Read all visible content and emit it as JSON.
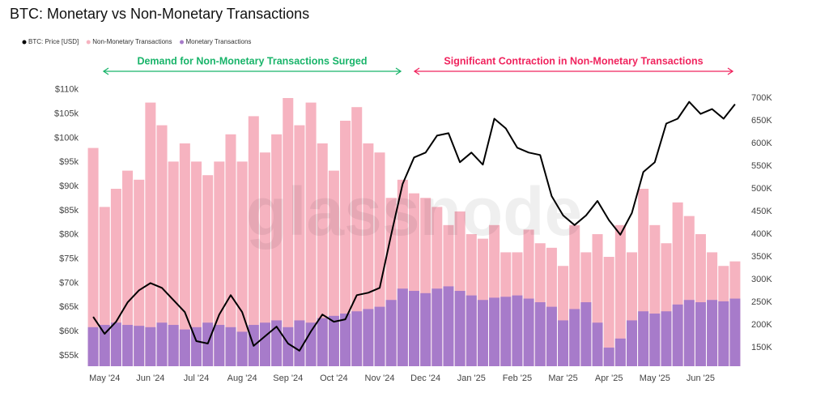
{
  "chart_data": {
    "type": "combo",
    "title": "BTC: Monetary vs Non-Monetary Transactions",
    "watermark": "glassnode",
    "categories": [
      null,
      "May '24",
      null,
      null,
      null,
      "Jun '24",
      null,
      null,
      null,
      "Jul '24",
      null,
      null,
      null,
      "Aug '24",
      null,
      null,
      null,
      "Sep '24",
      null,
      null,
      null,
      "Oct '24",
      null,
      null,
      null,
      "Nov '24",
      null,
      null,
      null,
      "Dec '24",
      null,
      null,
      null,
      "Jan '25",
      null,
      null,
      null,
      "Feb '25",
      null,
      null,
      null,
      "Mar '25",
      null,
      null,
      null,
      "Apr '25",
      null,
      null,
      null,
      "May '25",
      null,
      null,
      null,
      "Jun '25",
      null,
      null,
      null
    ],
    "series": [
      {
        "name": "BTC: Price [USD]",
        "type": "line",
        "axis": "y",
        "color": "#000000",
        "values": [
          63000,
          59500,
          62000,
          66000,
          68500,
          70000,
          69000,
          66500,
          64000,
          58000,
          57500,
          63500,
          67500,
          64000,
          57000,
          59000,
          61000,
          57500,
          56000,
          60000,
          63500,
          62000,
          62500,
          67500,
          68000,
          69000,
          80000,
          90500,
          96000,
          97000,
          100500,
          101000,
          95000,
          97000,
          94500,
          104000,
          102000,
          98000,
          97000,
          96500,
          88000,
          84000,
          82000,
          84000,
          87000,
          83000,
          80000,
          84500,
          93000,
          95000,
          103000,
          104000,
          107500,
          105000,
          106000,
          104000,
          107000
        ]
      },
      {
        "name": "Non-Monetary Transactions",
        "type": "bar",
        "axis": "y2",
        "color": "#f6b3c0",
        "values": [
          590000,
          460000,
          500000,
          540000,
          520000,
          690000,
          640000,
          560000,
          600000,
          560000,
          530000,
          560000,
          620000,
          560000,
          660000,
          580000,
          620000,
          700000,
          640000,
          690000,
          600000,
          540000,
          650000,
          680000,
          600000,
          580000,
          480000,
          520000,
          490000,
          480000,
          460000,
          420000,
          450000,
          400000,
          390000,
          420000,
          360000,
          360000,
          410000,
          380000,
          370000,
          330000,
          420000,
          360000,
          400000,
          350000,
          420000,
          360000,
          500000,
          420000,
          380000,
          470000,
          440000,
          400000,
          360000,
          330000,
          340000
        ]
      },
      {
        "name": "Monetary Transactions",
        "type": "bar",
        "axis": "y2",
        "color": "#a77bca",
        "values": [
          195000,
          200000,
          205000,
          200000,
          198000,
          195000,
          205000,
          200000,
          190000,
          195000,
          205000,
          200000,
          195000,
          185000,
          200000,
          205000,
          210000,
          195000,
          210000,
          205000,
          215000,
          220000,
          225000,
          230000,
          235000,
          240000,
          255000,
          280000,
          275000,
          270000,
          280000,
          285000,
          275000,
          265000,
          255000,
          260000,
          262000,
          265000,
          258000,
          250000,
          240000,
          210000,
          235000,
          250000,
          205000,
          150000,
          170000,
          210000,
          230000,
          225000,
          230000,
          245000,
          255000,
          250000,
          255000,
          252000,
          258000
        ]
      }
    ],
    "ylim": [
      52800,
      111800
    ],
    "yticks": [
      {
        "value": 55000,
        "label": "$55k"
      },
      {
        "value": 60000,
        "label": "$60k"
      },
      {
        "value": 65000,
        "label": "$65k"
      },
      {
        "value": 70000,
        "label": "$70k"
      },
      {
        "value": 75000,
        "label": "$75k"
      },
      {
        "value": 80000,
        "label": "$80k"
      },
      {
        "value": 85000,
        "label": "$85k"
      },
      {
        "value": 90000,
        "label": "$90k"
      },
      {
        "value": 95000,
        "label": "$95k"
      },
      {
        "value": 100000,
        "label": "$100k"
      },
      {
        "value": 105000,
        "label": "$105k"
      },
      {
        "value": 110000,
        "label": "$110k"
      }
    ],
    "y2lim": [
      109000,
      737500
    ],
    "y2ticks": [
      {
        "value": 150000,
        "label": "150K"
      },
      {
        "value": 200000,
        "label": "200K"
      },
      {
        "value": 250000,
        "label": "250K"
      },
      {
        "value": 300000,
        "label": "300K"
      },
      {
        "value": 350000,
        "label": "350K"
      },
      {
        "value": 400000,
        "label": "400K"
      },
      {
        "value": 450000,
        "label": "450K"
      },
      {
        "value": 500000,
        "label": "500K"
      },
      {
        "value": 550000,
        "label": "550K"
      },
      {
        "value": 600000,
        "label": "600K"
      },
      {
        "value": 650000,
        "label": "650K"
      },
      {
        "value": 700000,
        "label": "700K"
      }
    ],
    "annotations": [
      {
        "text": "Demand for Non-Monetary Transactions Surged",
        "color": "#19b46a"
      },
      {
        "text": "Significant Contraction in Non-Monetary Transactions",
        "color": "#f0245e"
      }
    ]
  }
}
